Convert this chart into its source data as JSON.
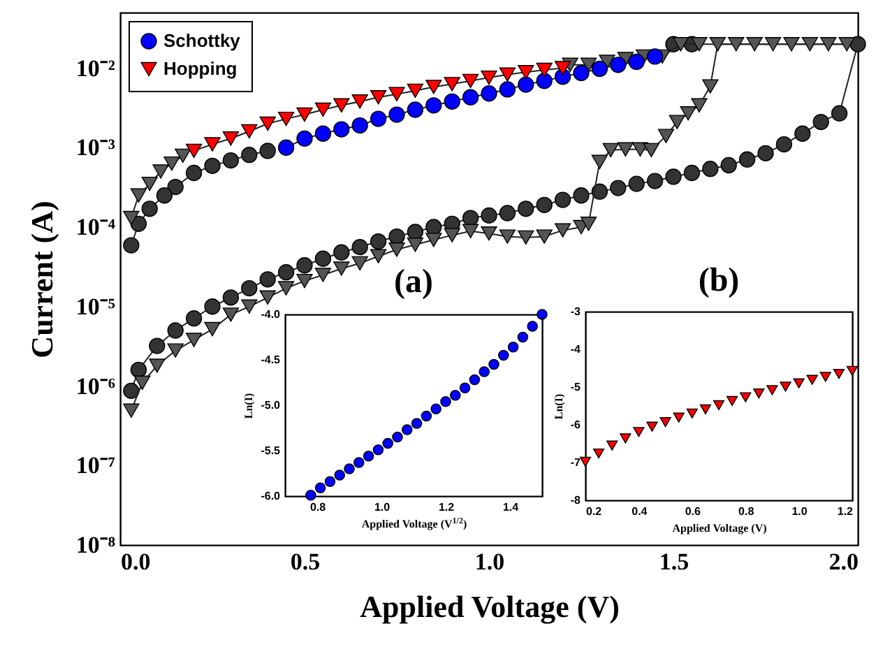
{
  "chart_data": [
    {
      "type": "line",
      "xlabel": "Applied Voltage (V)",
      "ylabel": "Current (A)",
      "xlim": [
        0,
        2
      ],
      "xticks": [
        {
          "value": 0,
          "label": "0.0"
        },
        0.5,
        {
          "value": 1,
          "label": "1.0"
        },
        1.5,
        {
          "value": 2,
          "label": "2.0"
        }
      ],
      "ylim": [
        1e-08,
        0.05
      ],
      "yticks": [
        {
          "value": 1e-08,
          "label": "10⁻⁸"
        },
        {
          "value": 1e-07,
          "label": "10⁻⁷"
        },
        {
          "value": 1e-06,
          "label": "10⁻⁶"
        },
        {
          "value": 1e-05,
          "label": "10⁻⁵"
        },
        {
          "value": 0.0001,
          "label": "10⁻⁴"
        },
        {
          "value": 0.001,
          "label": "10⁻³"
        },
        {
          "value": 0.01,
          "label": "10⁻²"
        }
      ],
      "log": "y",
      "legend": "top left",
      "series": [
        {
          "color": "#333333",
          "marker": "circle",
          "x": [
            0.03,
            0.05,
            0.1,
            0.15,
            0.2,
            0.25,
            0.3,
            0.35,
            0.4,
            0.45,
            0.5,
            0.55,
            0.6,
            0.65,
            0.7,
            0.75,
            0.8,
            0.85,
            0.9,
            0.95,
            1.0,
            1.05,
            1.1,
            1.15,
            1.2,
            1.25,
            1.3,
            1.35,
            1.4,
            1.45,
            1.5,
            1.55,
            1.6,
            1.65,
            1.7,
            1.75,
            1.8,
            1.85,
            1.9,
            1.95,
            2.0,
            1.55,
            1.5
          ],
          "values": [
            8.7e-07,
            1.6e-06,
            3.2e-06,
            5e-06,
            7.1e-06,
            1e-05,
            1.3e-05,
            1.7e-05,
            2.2e-05,
            2.7e-05,
            3.3e-05,
            4e-05,
            4.8e-05,
            5.6e-05,
            6.6e-05,
            7.6e-05,
            8.7e-05,
            0.0001,
            0.00011,
            0.00013,
            0.00014,
            0.00015,
            0.00017,
            0.00019,
            0.00022,
            0.00025,
            0.00028,
            0.00031,
            0.00035,
            0.00038,
            0.00043,
            0.00048,
            0.00054,
            0.0006,
            0.00071,
            0.00085,
            0.0011,
            0.0015,
            0.0021,
            0.0027,
            0.02,
            0.02,
            0.02
          ]
        },
        {
          "color": "#333333",
          "marker": "circle",
          "x": [
            0.4,
            0.35,
            0.3,
            0.25,
            0.2,
            0.15,
            0.12,
            0.08,
            0.05,
            0.03
          ],
          "values": [
            0.00091,
            0.00081,
            0.00069,
            0.00059,
            0.00048,
            0.00032,
            0.00025,
            0.00017,
            0.00011,
            5.9e-05
          ]
        },
        {
          "color": "#555555",
          "marker": "triangle",
          "x": [
            0.03,
            0.06,
            0.1,
            0.15,
            0.2,
            0.25,
            0.3,
            0.35,
            0.4,
            0.45,
            0.5,
            0.55,
            0.6,
            0.65,
            0.7,
            0.75,
            0.8,
            0.85,
            0.9,
            0.95,
            1.0,
            1.05,
            1.1,
            1.15,
            1.2,
            1.25,
            1.27,
            1.3,
            1.33,
            1.37,
            1.41,
            1.44,
            1.48,
            1.51,
            1.54,
            1.57,
            1.6,
            1.62,
            1.67,
            1.72,
            1.77,
            1.82,
            1.87,
            1.92,
            1.97
          ],
          "values": [
            4.9e-07,
            1.1e-06,
            1.8e-06,
            2.8e-06,
            3.8e-06,
            5.2e-06,
            7.9e-06,
            1e-05,
            1.3e-05,
            1.7e-05,
            2.1e-05,
            2.5e-05,
            3e-05,
            3.5e-05,
            4.3e-05,
            5.2e-05,
            6e-05,
            6.9e-05,
            7.9e-05,
            8.9e-05,
            8.3e-05,
            7.6e-05,
            7.4e-05,
            7.6e-05,
            9.1e-05,
            0.0001,
            0.00011,
            0.00066,
            0.00093,
            0.00095,
            0.00095,
            0.00093,
            0.0014,
            0.0021,
            0.0027,
            0.0034,
            0.0059,
            0.02,
            0.02,
            0.02,
            0.02,
            0.02,
            0.02,
            0.02,
            0.02
          ]
        },
        {
          "color": "#555555",
          "marker": "triangle",
          "x": [
            1.57,
            1.52,
            1.47,
            1.42,
            1.37,
            1.32,
            1.27,
            1.22
          ],
          "values": [
            0.02,
            0.02,
            0.014,
            0.014,
            0.013,
            0.012,
            0.011,
            0.011
          ]
        },
        {
          "color": "#555555",
          "marker": "triangle",
          "x": [
            0.17,
            0.14,
            0.11,
            0.08,
            0.05,
            0.03
          ],
          "values": [
            0.00079,
            0.00063,
            0.0005,
            0.00035,
            0.00025,
            0.00013
          ]
        },
        {
          "name": "Schottky",
          "color": "#0000ff",
          "marker": "circle",
          "x": [
            0.45,
            0.5,
            0.55,
            0.6,
            0.65,
            0.7,
            0.75,
            0.8,
            0.85,
            0.9,
            0.95,
            1.0,
            1.05,
            1.1,
            1.15,
            1.2,
            1.25,
            1.3,
            1.35,
            1.4,
            1.45
          ],
          "values": [
            0.001,
            0.0013,
            0.0015,
            0.0017,
            0.0019,
            0.0023,
            0.0026,
            0.003,
            0.0034,
            0.0038,
            0.0043,
            0.0048,
            0.0054,
            0.0062,
            0.0069,
            0.0078,
            0.0087,
            0.0098,
            0.011,
            0.012,
            0.014
          ]
        },
        {
          "name": "Hopping",
          "color": "#ff0000",
          "marker": "triangle",
          "x": [
            0.2,
            0.25,
            0.3,
            0.35,
            0.4,
            0.45,
            0.5,
            0.55,
            0.6,
            0.65,
            0.7,
            0.75,
            0.8,
            0.85,
            0.9,
            0.95,
            1.0,
            1.05,
            1.1,
            1.15,
            1.2
          ],
          "values": [
            0.00091,
            0.0011,
            0.0013,
            0.0016,
            0.002,
            0.0023,
            0.0026,
            0.003,
            0.0034,
            0.0038,
            0.0043,
            0.0047,
            0.0052,
            0.0058,
            0.0063,
            0.0069,
            0.0076,
            0.0083,
            0.0089,
            0.0095,
            0.01
          ]
        }
      ]
    },
    {
      "type": "scatter",
      "title": "(a)",
      "xlabel": "Applied Voltage (V$^{1/2}$)",
      "ylabel": "Ln(I)",
      "xlim": [
        0.7,
        1.5
      ],
      "xticks": [
        0.8,
        {
          "value": 1,
          "label": "1.0"
        },
        1.2,
        1.4
      ],
      "ylim": [
        -6,
        -4
      ],
      "yticks": [
        {
          "value": -6,
          "label": "-6.0"
        },
        -5.5,
        {
          "value": -5,
          "label": "-5.0"
        },
        -4.5,
        {
          "value": -4,
          "label": "-4.0"
        }
      ],
      "marker": "circle",
      "series": [
        {
          "color": "#0000ff",
          "x": [
            0.78,
            0.81,
            0.84,
            0.87,
            0.9,
            0.93,
            0.96,
            0.99,
            1.02,
            1.05,
            1.08,
            1.11,
            1.14,
            1.17,
            1.2,
            1.23,
            1.26,
            1.29,
            1.32,
            1.35,
            1.38,
            1.41,
            1.44,
            1.47,
            1.5
          ],
          "values": [
            -5.99,
            -5.91,
            -5.84,
            -5.77,
            -5.7,
            -5.63,
            -5.56,
            -5.49,
            -5.42,
            -5.35,
            -5.27,
            -5.2,
            -5.12,
            -5.04,
            -4.96,
            -4.89,
            -4.81,
            -4.72,
            -4.63,
            -4.55,
            -4.45,
            -4.36,
            -4.25,
            -4.13,
            -4.0
          ]
        }
      ]
    },
    {
      "type": "scatter",
      "title": "(b)",
      "xlabel": "Applied Voltage (V)",
      "ylabel": "Ln(I)",
      "xlim": [
        0.2,
        1.2
      ],
      "xticks": [
        0.2,
        0.4,
        0.6,
        0.8,
        {
          "value": 1,
          "label": "1.0"
        },
        1.2
      ],
      "ylim": [
        -8,
        -3
      ],
      "yticks": [
        -8,
        -7,
        -6,
        -5,
        -4,
        -3
      ],
      "marker": "triangle",
      "series": [
        {
          "color": "#ff0000",
          "x": [
            0.2,
            0.25,
            0.3,
            0.35,
            0.4,
            0.45,
            0.5,
            0.55,
            0.6,
            0.65,
            0.7,
            0.75,
            0.8,
            0.85,
            0.9,
            0.95,
            1.0,
            1.05,
            1.1,
            1.15,
            1.2
          ],
          "values": [
            -6.98,
            -6.76,
            -6.55,
            -6.36,
            -6.19,
            -6.05,
            -5.93,
            -5.81,
            -5.7,
            -5.59,
            -5.48,
            -5.37,
            -5.27,
            -5.17,
            -5.08,
            -4.99,
            -4.9,
            -4.81,
            -4.73,
            -4.65,
            -4.57
          ]
        }
      ]
    }
  ]
}
